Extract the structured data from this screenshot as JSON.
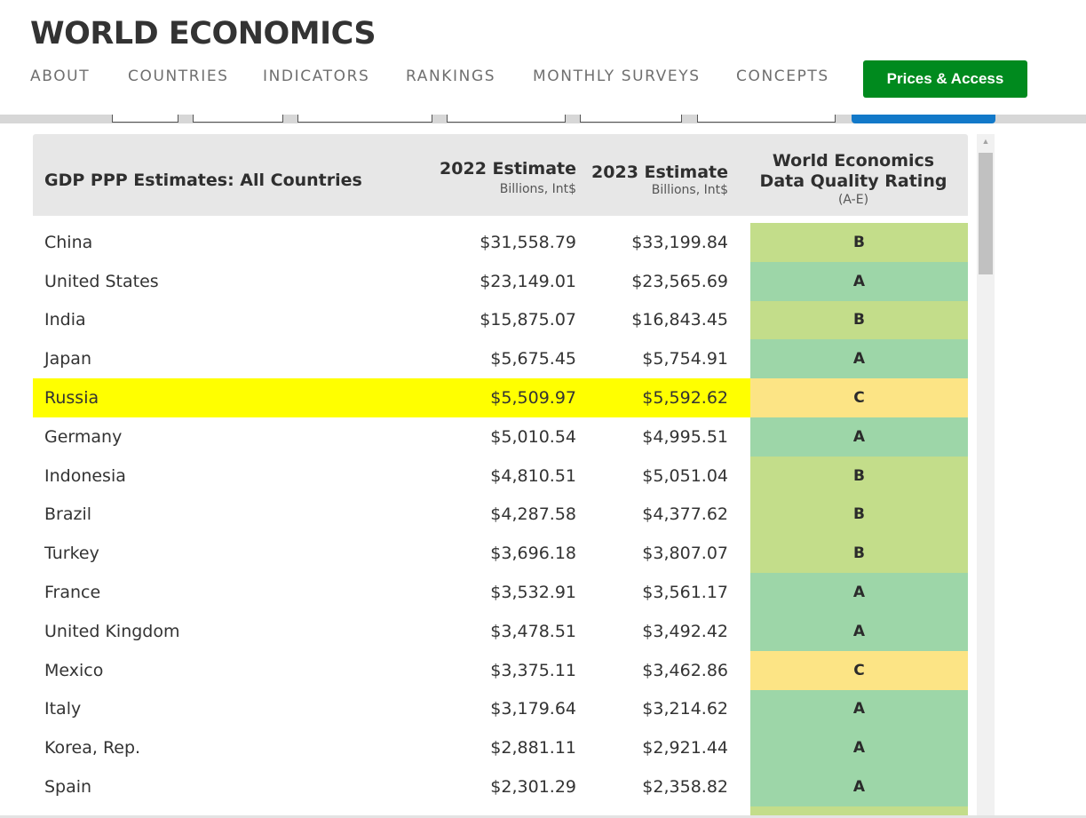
{
  "brand": "WORLD ECONOMICS",
  "nav": [
    "ABOUT",
    "COUNTRIES",
    "INDICATORS",
    "RANKINGS",
    "MONTHLY SURVEYS",
    "CONCEPTS"
  ],
  "cta_label": "Prices & Access",
  "colors": {
    "cta": "#008a1e",
    "highlight": "#ffff00",
    "rating_A": "#9dd6a8",
    "rating_B": "#c3dd8a",
    "rating_C": "#fce485",
    "sub_tab_active": "#1279c9"
  },
  "table": {
    "title": "GDP PPP Estimates: All Countries",
    "col_2022": "2022 Estimate",
    "col_2022_unit": "Billions, Int$",
    "col_2023": "2023 Estimate",
    "col_2023_unit": "Billions, Int$",
    "rating_line1": "World Economics",
    "rating_line2": "Data Quality Rating",
    "rating_scale": "(A-E)",
    "rows": [
      {
        "country": "China",
        "e2022": "$31,558.79",
        "e2023": "$33,199.84",
        "rating": "B"
      },
      {
        "country": "United States",
        "e2022": "$23,149.01",
        "e2023": "$23,565.69",
        "rating": "A"
      },
      {
        "country": "India",
        "e2022": "$15,875.07",
        "e2023": "$16,843.45",
        "rating": "B"
      },
      {
        "country": "Japan",
        "e2022": "$5,675.45",
        "e2023": "$5,754.91",
        "rating": "A"
      },
      {
        "country": "Russia",
        "e2022": "$5,509.97",
        "e2023": "$5,592.62",
        "rating": "C",
        "highlighted": true
      },
      {
        "country": "Germany",
        "e2022": "$5,010.54",
        "e2023": "$4,995.51",
        "rating": "A"
      },
      {
        "country": "Indonesia",
        "e2022": "$4,810.51",
        "e2023": "$5,051.04",
        "rating": "B"
      },
      {
        "country": "Brazil",
        "e2022": "$4,287.58",
        "e2023": "$4,377.62",
        "rating": "B"
      },
      {
        "country": "Turkey",
        "e2022": "$3,696.18",
        "e2023": "$3,807.07",
        "rating": "B"
      },
      {
        "country": "France",
        "e2022": "$3,532.91",
        "e2023": "$3,561.17",
        "rating": "A"
      },
      {
        "country": "United Kingdom",
        "e2022": "$3,478.51",
        "e2023": "$3,492.42",
        "rating": "A"
      },
      {
        "country": "Mexico",
        "e2022": "$3,375.11",
        "e2023": "$3,462.86",
        "rating": "C"
      },
      {
        "country": "Italy",
        "e2022": "$3,179.64",
        "e2023": "$3,214.62",
        "rating": "A"
      },
      {
        "country": "Korea, Rep.",
        "e2022": "$2,881.11",
        "e2023": "$2,921.44",
        "rating": "A"
      },
      {
        "country": "Spain",
        "e2022": "$2,301.29",
        "e2023": "$2,358.82",
        "rating": "A"
      },
      {
        "country": "",
        "e2022": "",
        "e2023": "",
        "rating": "",
        "rating_color_hint": "B"
      }
    ]
  }
}
